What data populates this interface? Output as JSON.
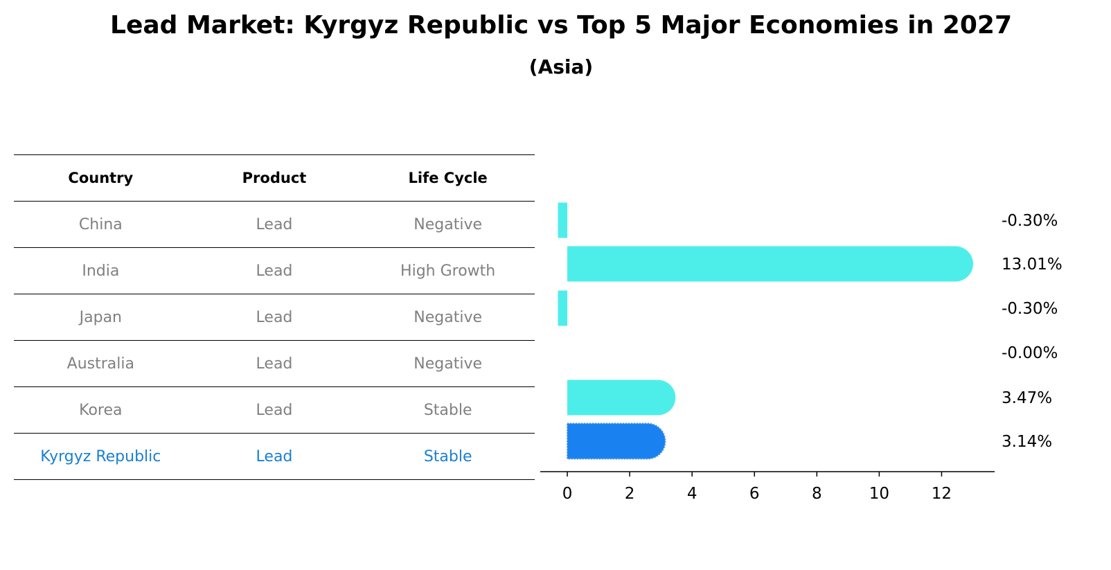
{
  "title": "Lead Market: Kyrgyz Republic vs Top 5 Major Economies in 2027",
  "subtitle": "(Asia)",
  "table": {
    "headers": [
      "Country",
      "Product",
      "Life Cycle"
    ],
    "rows": [
      {
        "country": "China",
        "product": "Lead",
        "life_cycle": "Negative"
      },
      {
        "country": "India",
        "product": "Lead",
        "life_cycle": "High Growth"
      },
      {
        "country": "Japan",
        "product": "Lead",
        "life_cycle": "Negative"
      },
      {
        "country": "Australia",
        "product": "Lead",
        "life_cycle": "Negative"
      },
      {
        "country": "Korea",
        "product": "Lead",
        "life_cycle": "Stable"
      },
      {
        "country": "Kyrgyz Republic",
        "product": "Lead",
        "life_cycle": "Stable"
      }
    ]
  },
  "colors": {
    "bar": "#4deeea",
    "highlight_bar": "#1982f0",
    "highlight_text": "#1a7fd1",
    "muted_text": "#808080"
  },
  "chart_data": {
    "type": "bar",
    "orientation": "horizontal",
    "categories": [
      "China",
      "India",
      "Japan",
      "Australia",
      "Korea",
      "Kyrgyz Republic"
    ],
    "values": [
      -0.3,
      13.01,
      -0.3,
      -0.0,
      3.47,
      3.14
    ],
    "value_labels": [
      "-0.30%",
      "13.01%",
      "-0.30%",
      "-0.00%",
      "3.47%",
      "3.14%"
    ],
    "highlight": "Kyrgyz Republic",
    "xlim": [
      -1,
      13.7
    ],
    "xticks": [
      0,
      2,
      4,
      6,
      8,
      10,
      12
    ],
    "title": "",
    "xlabel": "",
    "ylabel": ""
  }
}
